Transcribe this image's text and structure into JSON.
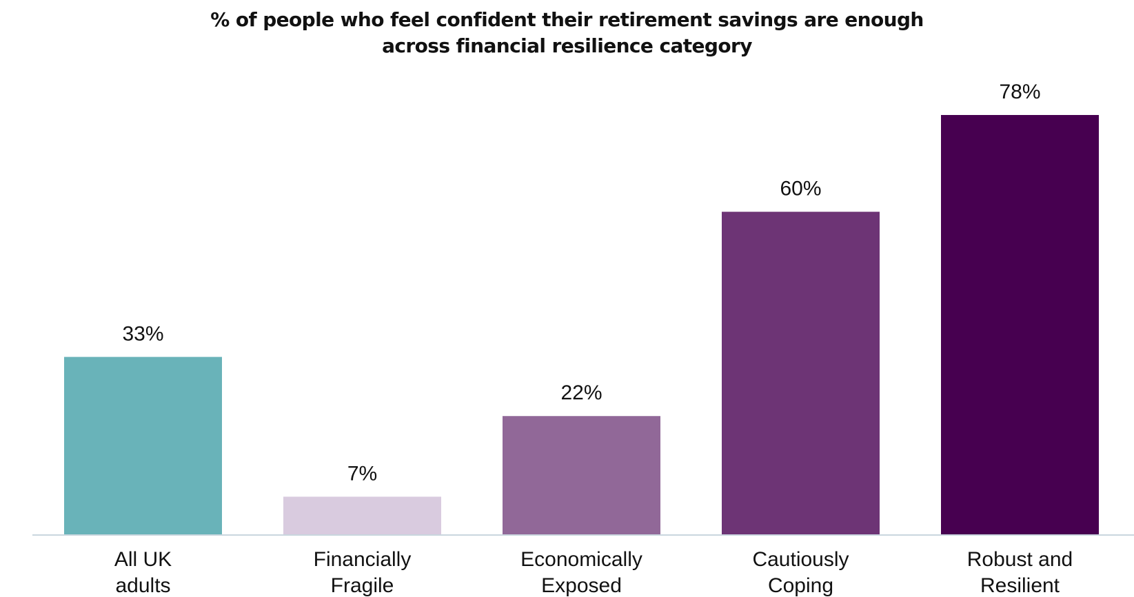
{
  "chart_data": {
    "type": "bar",
    "title_lines": [
      "% of people who feel confident their retirement savings are enough",
      "across financial resilience category"
    ],
    "xlabel": "",
    "ylabel": "",
    "ylim": [
      0,
      78
    ],
    "grid": false,
    "legend": "none",
    "categories": [
      [
        "All UK",
        "adults"
      ],
      [
        "Financially",
        "Fragile"
      ],
      [
        "Economically",
        "Exposed"
      ],
      [
        "Cautiously",
        "Coping"
      ],
      [
        "Robust and",
        "Resilient"
      ]
    ],
    "values": [
      33,
      7,
      22,
      60,
      78
    ],
    "value_labels": [
      "33%",
      "7%",
      "22%",
      "60%",
      "78%"
    ],
    "colors": [
      "#69b3b9",
      "#d9cbdf",
      "#916898",
      "#6d3475",
      "#470050"
    ],
    "baseline_color": "#c9d6de"
  }
}
